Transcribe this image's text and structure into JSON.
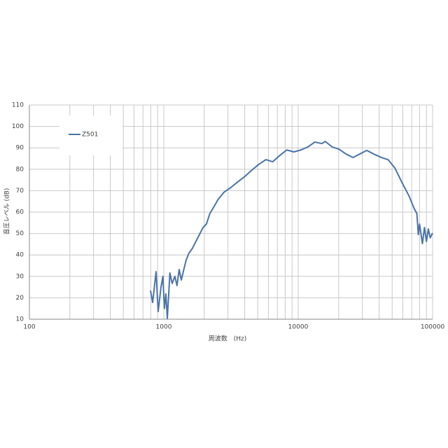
{
  "chart_data": {
    "type": "line",
    "title": null,
    "x_label": "周波数　(Hz)",
    "y_label": "音圧レベル (dB)",
    "x_scale": "log",
    "grid": true,
    "legend": "upper left",
    "xlim": [
      100,
      100000
    ],
    "xticks": [
      100,
      1000,
      10000,
      100000
    ],
    "ylim": [
      10,
      110
    ],
    "yticks": [
      10,
      20,
      30,
      40,
      50,
      60,
      70,
      80,
      90,
      100,
      110
    ],
    "x": [
      796,
      826,
      876,
      908,
      953,
      985,
      1010,
      1036,
      1062,
      1110,
      1154,
      1209,
      1254,
      1301,
      1350,
      1397,
      1465,
      1534,
      1630,
      1732,
      1841,
      1958,
      2075,
      2200,
      2367,
      2533,
      2795,
      3139,
      3535,
      4020,
      4520,
      5070,
      5750,
      6460,
      7310,
      8220,
      9280,
      10460,
      11800,
      13300,
      15000,
      15900,
      17900,
      20100,
      22700,
      25600,
      28700,
      32400,
      36500,
      41500,
      46600,
      52400,
      59000,
      66800,
      73000,
      76400,
      78300,
      80000,
      84000,
      87000,
      90000,
      93000,
      96000,
      100000
    ],
    "series": [
      {
        "name": "Z501",
        "color": "#4a73a8",
        "values": [
          23.4,
          17.8,
          32.2,
          13.6,
          25,
          30,
          15,
          21.8,
          10.3,
          31.6,
          26.7,
          30,
          25.7,
          33.2,
          28.3,
          32.2,
          37.5,
          40.7,
          43,
          46.3,
          49.5,
          52.8,
          54.4,
          59.3,
          62.6,
          65.9,
          69.2,
          71.4,
          74,
          76.7,
          79.6,
          82.2,
          84.5,
          83.5,
          86.5,
          89,
          88.1,
          89,
          90.4,
          92.7,
          92,
          93,
          90.4,
          89.4,
          87.1,
          85.5,
          87.1,
          88.8,
          87.1,
          85.5,
          84.5,
          80.6,
          74,
          67.5,
          61.6,
          59.3,
          49.5,
          54.4,
          45.3,
          52.8,
          46.3,
          52.1,
          48,
          50.2
        ]
      }
    ]
  }
}
